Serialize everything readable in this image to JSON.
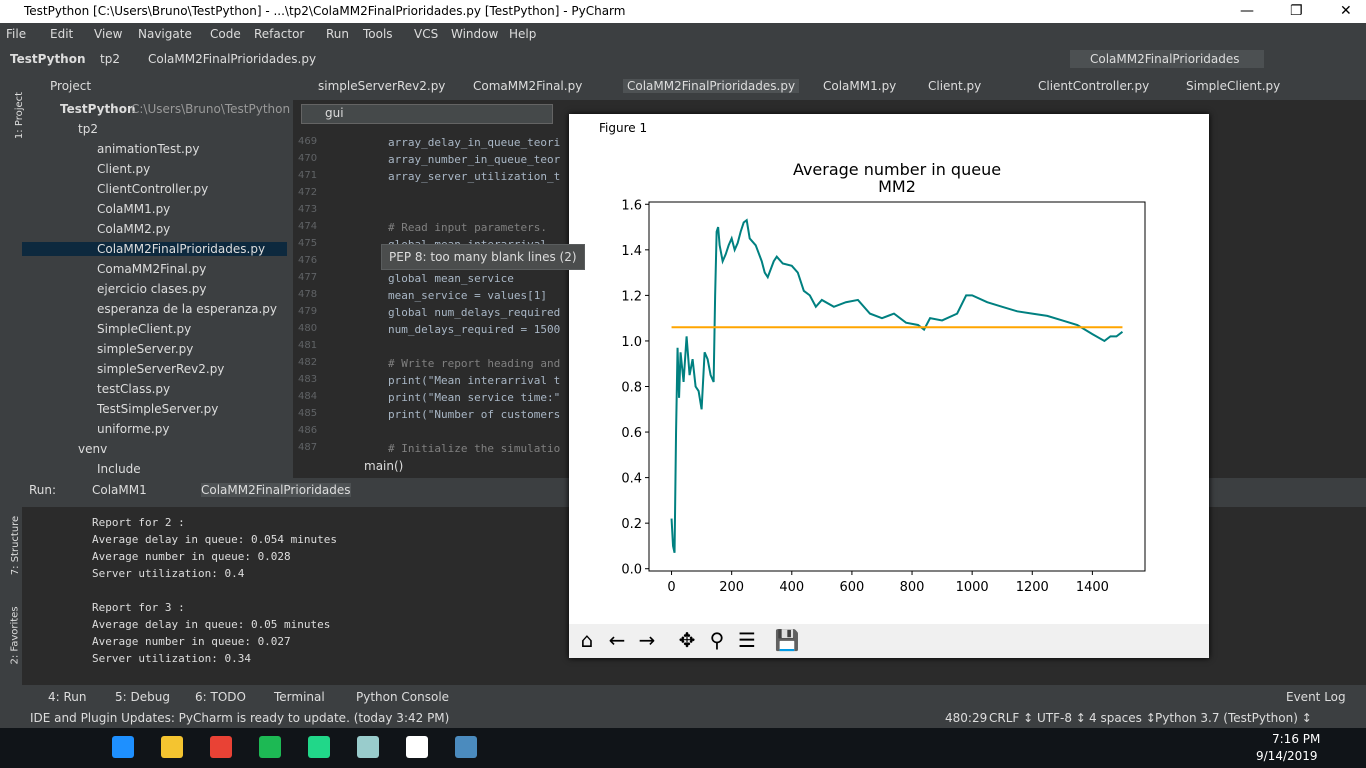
{
  "window": {
    "title": "TestPython [C:\\Users\\Bruno\\TestPython] - ...\\tp2\\ColaMM2FinalPrioridades.py [TestPython] - PyCharm"
  },
  "menu": [
    "File",
    "Edit",
    "View",
    "Navigate",
    "Code",
    "Refactor",
    "Run",
    "Tools",
    "VCS",
    "Window",
    "Help"
  ],
  "breadcrumb": [
    "TestPython",
    "tp2",
    "ColaMM2FinalPrioridades.py"
  ],
  "run_config": "ColaMM2FinalPrioridades",
  "tabs": [
    "simpleServerRev2.py",
    "ComaMM2Final.py",
    "ColaMM2FinalPrioridades.py",
    "ColaMM1.py",
    "Client.py",
    "ClientController.py",
    "SimpleClient.py"
  ],
  "project": {
    "header": "Project",
    "root": "TestPython",
    "root_path": "C:\\Users\\Bruno\\TestPython",
    "folder": "tp2",
    "files": [
      "animationTest.py",
      "Client.py",
      "ClientController.py",
      "ColaMM1.py",
      "ColaMM2.py",
      "ColaMM2FinalPrioridades.py",
      "ComaMM2Final.py",
      "ejercicio clases.py",
      "esperanza de la esperanza.py",
      "SimpleClient.py",
      "simpleServer.py",
      "simpleServerRev2.py",
      "testClass.py",
      "TestSimpleServer.py",
      "uniforme.py"
    ],
    "venv": "venv",
    "include": "Include"
  },
  "search": {
    "query": "gui"
  },
  "editor": {
    "lines": [
      {
        "n": 469,
        "code": "array_delay_in_queue_teori"
      },
      {
        "n": 470,
        "code": "array_number_in_queue_teor"
      },
      {
        "n": 471,
        "code": "array_server_utilization_t"
      },
      {
        "n": 472
      },
      {
        "n": 473
      },
      {
        "n": 474,
        "code": "# Read input parameters."
      },
      {
        "n": 475,
        "code": "global mean_interarrival"
      },
      {
        "n": 476
      },
      {
        "n": 477,
        "code": "global mean_service"
      },
      {
        "n": 478,
        "code": "mean_service = values[1]"
      },
      {
        "n": 479,
        "code": "global num_delays_required"
      },
      {
        "n": 480,
        "code": "num_delays_required = 1500"
      },
      {
        "n": 481
      },
      {
        "n": 482,
        "code": "# Write report heading and"
      },
      {
        "n": 483,
        "code": "print(\"Mean interarrival t"
      },
      {
        "n": 484,
        "code": "print(\"Mean service time:\""
      },
      {
        "n": 485,
        "code": "print(\"Number of customers"
      },
      {
        "n": 486
      },
      {
        "n": 487,
        "code": "# Initialize the simulatio"
      }
    ],
    "tooltip": "PEP 8: too many blank lines (2)",
    "scope": "main()"
  },
  "run": {
    "label": "Run:",
    "tabs": [
      "ColaMM1",
      "ColaMM2FinalPrioridades"
    ],
    "output": [
      [
        "Report for  2 :",
        "Average delay in queue:  0.054  minutes",
        "Average number in queue:  0.028",
        "Server utilization:  0.4"
      ],
      [
        "Report for  3 :",
        "Average delay in queue:  0.05  minutes",
        "Average number in queue:  0.027",
        "Server utilization:  0.34"
      ]
    ]
  },
  "side_tabs": [
    "1: Project",
    "7: Structure",
    "2: Favorites"
  ],
  "bottom_tabs": [
    "4: Run",
    "5: Debug",
    "6: TODO",
    "Terminal",
    "Python Console"
  ],
  "event_log": "Event Log",
  "status": {
    "message": "IDE and Plugin Updates: PyCharm is ready to update. (today 3:42 PM)",
    "items": [
      "480:29",
      "CRLF ↕",
      "UTF-8 ↕",
      "4 spaces ↕",
      "Python 3.7 (TestPython) ↕"
    ]
  },
  "taskbar": {
    "time": "7:16 PM",
    "date": "9/14/2019"
  },
  "figure": {
    "title": "Figure 1"
  },
  "chart_data": {
    "type": "line",
    "title": "Average number in queue",
    "subtitle": "MM2",
    "xlim": [
      -75,
      1575
    ],
    "xticks": [
      0,
      200,
      400,
      600,
      800,
      1000,
      1200,
      1400
    ],
    "ylim": [
      -0.01,
      1.61
    ],
    "yticks": [
      {
        "value": 0,
        "label": "0.0"
      },
      0.2,
      0.4,
      0.6,
      0.8,
      {
        "value": 1,
        "label": "1.0"
      },
      1.2,
      1.4,
      1.6
    ],
    "series": [
      {
        "color": "#008080",
        "x": [
          0,
          5,
          10,
          15,
          20,
          25,
          30,
          40,
          50,
          60,
          70,
          80,
          90,
          100,
          110,
          120,
          130,
          140,
          145,
          150,
          155,
          160,
          170,
          180,
          190,
          200,
          210,
          220,
          230,
          240,
          250,
          260,
          280,
          300,
          310,
          320,
          340,
          350,
          370,
          400,
          420,
          440,
          460,
          480,
          500,
          540,
          580,
          620,
          660,
          700,
          740,
          780,
          820,
          840,
          860,
          900,
          950,
          980,
          1000,
          1050,
          1100,
          1150,
          1200,
          1250,
          1300,
          1350,
          1400,
          1440,
          1460,
          1480,
          1500
        ],
        "values": [
          0.22,
          0.1,
          0.07,
          0.6,
          0.97,
          0.75,
          0.95,
          0.82,
          1.02,
          0.85,
          0.92,
          0.8,
          0.78,
          0.7,
          0.95,
          0.92,
          0.85,
          0.82,
          1.2,
          1.48,
          1.5,
          1.42,
          1.35,
          1.38,
          1.42,
          1.45,
          1.4,
          1.43,
          1.48,
          1.52,
          1.53,
          1.45,
          1.42,
          1.35,
          1.3,
          1.28,
          1.35,
          1.37,
          1.34,
          1.33,
          1.3,
          1.22,
          1.2,
          1.15,
          1.18,
          1.15,
          1.17,
          1.18,
          1.12,
          1.1,
          1.12,
          1.08,
          1.07,
          1.05,
          1.1,
          1.09,
          1.12,
          1.2,
          1.2,
          1.17,
          1.15,
          1.13,
          1.12,
          1.11,
          1.09,
          1.07,
          1.03,
          1.0,
          1.02,
          1.02,
          1.04
        ]
      },
      {
        "color": "#ffa500",
        "x": [
          0,
          1500
        ],
        "values": [
          1.06,
          1.06
        ]
      }
    ]
  }
}
